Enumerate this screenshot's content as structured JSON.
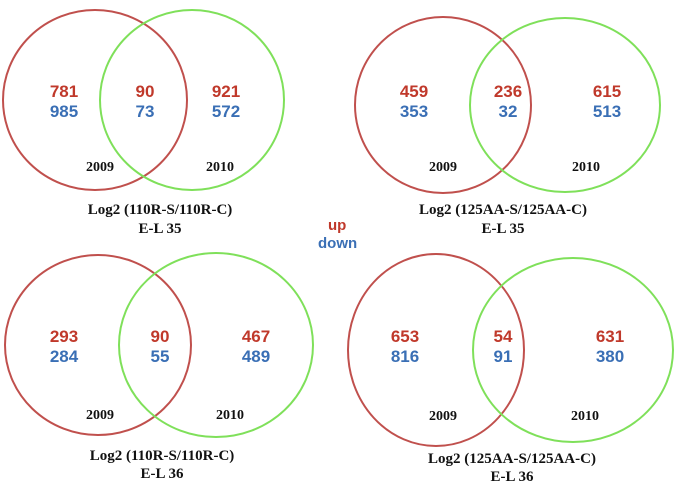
{
  "colors": {
    "left_circle": "#c0504d",
    "right_circle": "#7fe05a",
    "up": "#c0392b",
    "down": "#3a6fb5"
  },
  "legend": {
    "up": "up",
    "down": "down"
  },
  "panels": [
    {
      "left_label": "2009",
      "right_label": "2010",
      "left_only": {
        "up": "781",
        "down": "985"
      },
      "overlap": {
        "up": "90",
        "down": "73"
      },
      "right_only": {
        "up": "921",
        "down": "572"
      },
      "caption_line1": "Log2 (110R-S/110R-C)",
      "caption_line2": "E-L 35"
    },
    {
      "left_label": "2009",
      "right_label": "2010",
      "left_only": {
        "up": "459",
        "down": "353"
      },
      "overlap": {
        "up": "236",
        "down": "32"
      },
      "right_only": {
        "up": "615",
        "down": "513"
      },
      "caption_line1": "Log2 (125AA-S/125AA-C)",
      "caption_line2": "E-L 35"
    },
    {
      "left_label": "2009",
      "right_label": "2010",
      "left_only": {
        "up": "293",
        "down": "284"
      },
      "overlap": {
        "up": "90",
        "down": "55"
      },
      "right_only": {
        "up": "467",
        "down": "489"
      },
      "caption_line1": "Log2 (110R-S/110R-C)",
      "caption_line2": "E-L 36"
    },
    {
      "left_label": "2009",
      "right_label": "2010",
      "left_only": {
        "up": "653",
        "down": "816"
      },
      "overlap": {
        "up": "54",
        "down": "91"
      },
      "right_only": {
        "up": "631",
        "down": "380"
      },
      "caption_line1": "Log2 (125AA-S/125AA-C)",
      "caption_line2": "E-L 36"
    }
  ]
}
